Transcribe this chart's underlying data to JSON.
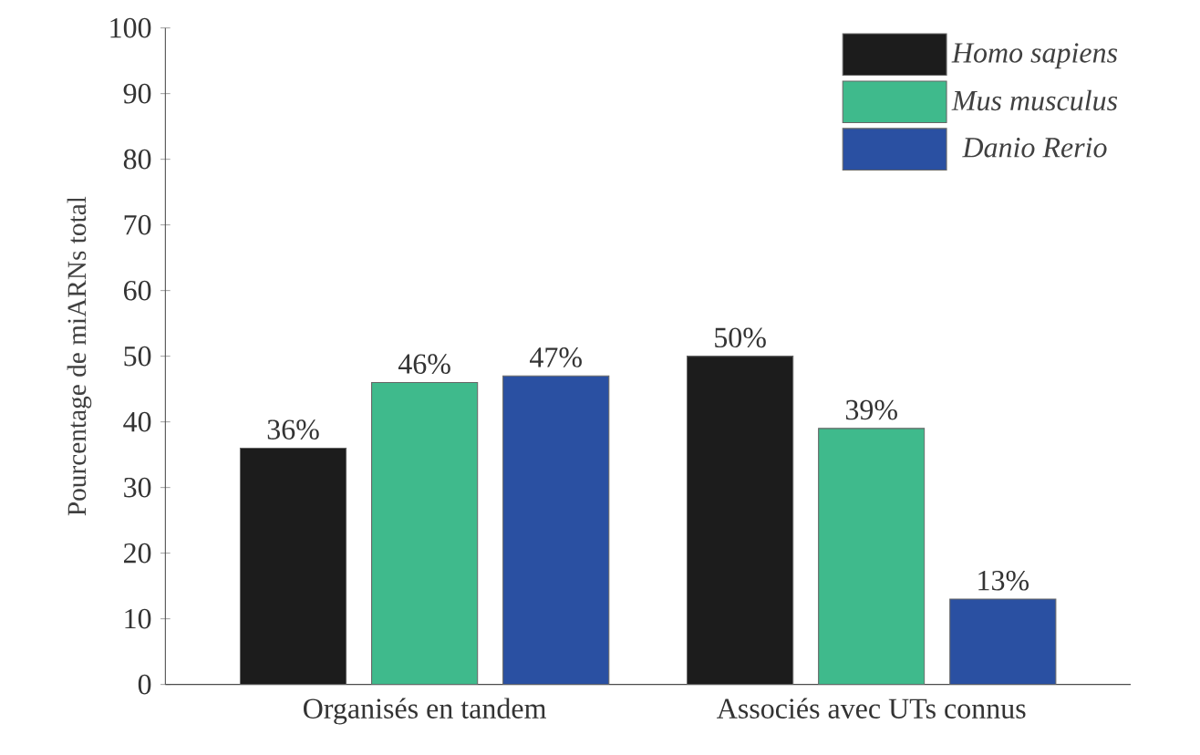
{
  "chart_data": {
    "type": "bar",
    "ylabel": "Pourcentage de miARNs total",
    "categories": [
      "Organisés en tandem",
      "Associés avec UTs connus"
    ],
    "series": [
      {
        "name": "Homo sapiens",
        "color": "#1c1c1c",
        "values": [
          36,
          50
        ],
        "value_labels": [
          "36%",
          "50%"
        ]
      },
      {
        "name": "Mus musculus",
        "color": "#3fba8c",
        "values": [
          46,
          39
        ],
        "value_labels": [
          "46%",
          "39%"
        ]
      },
      {
        "name": "Danio Rerio",
        "color": "#2a50a2",
        "values": [
          47,
          13
        ],
        "value_labels": [
          "47%",
          "13%"
        ]
      }
    ],
    "ylim": [
      0,
      100
    ],
    "yticks": [
      0,
      10,
      20,
      30,
      40,
      50,
      60,
      70,
      80,
      90,
      100
    ],
    "legend": "top right",
    "grid": false
  }
}
